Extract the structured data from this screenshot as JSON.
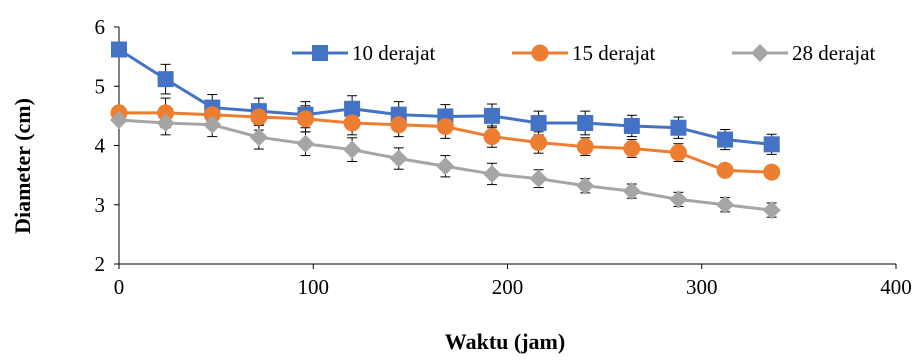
{
  "chart_data": {
    "type": "line",
    "title": "",
    "xlabel": "Waktu (jam)",
    "ylabel": "Diameter (cm)",
    "xlim": [
      0,
      400
    ],
    "ylim": [
      2,
      6
    ],
    "xticks": [
      0,
      100,
      200,
      300,
      400
    ],
    "yticks": [
      2,
      3,
      4,
      5,
      6
    ],
    "grid": false,
    "legend_position": "top-right",
    "error_bars": true,
    "x": [
      0,
      24,
      48,
      72,
      96,
      120,
      144,
      168,
      192,
      216,
      240,
      264,
      288,
      312,
      336
    ],
    "series": [
      {
        "name": "10 derajat",
        "color": "#4472C4",
        "marker": "square",
        "values": [
          5.62,
          5.12,
          4.64,
          4.58,
          4.52,
          4.62,
          4.52,
          4.49,
          4.5,
          4.38,
          4.38,
          4.33,
          4.3,
          4.1,
          4.02
        ],
        "errors": [
          0.07,
          0.25,
          0.22,
          0.22,
          0.22,
          0.22,
          0.22,
          0.2,
          0.2,
          0.2,
          0.2,
          0.18,
          0.18,
          0.17,
          0.17
        ]
      },
      {
        "name": "15 derajat",
        "color": "#ED7D31",
        "marker": "circle",
        "values": [
          4.55,
          4.55,
          4.52,
          4.48,
          4.45,
          4.38,
          4.35,
          4.32,
          4.15,
          4.05,
          3.98,
          3.95,
          3.88,
          3.58,
          3.55
        ],
        "errors": [
          0.05,
          0.25,
          0.22,
          0.22,
          0.22,
          0.2,
          0.2,
          0.2,
          0.18,
          0.18,
          0.15,
          0.15,
          0.15,
          0.05,
          0.05
        ]
      },
      {
        "name": "28 derajat",
        "color": "#A5A5A5",
        "marker": "diamond",
        "values": [
          4.43,
          4.38,
          4.35,
          4.14,
          4.03,
          3.93,
          3.78,
          3.65,
          3.52,
          3.44,
          3.32,
          3.23,
          3.09,
          3.0,
          2.91
        ],
        "errors": [
          0.03,
          0.2,
          0.2,
          0.2,
          0.2,
          0.2,
          0.18,
          0.18,
          0.18,
          0.15,
          0.12,
          0.12,
          0.12,
          0.12,
          0.12
        ]
      }
    ]
  }
}
